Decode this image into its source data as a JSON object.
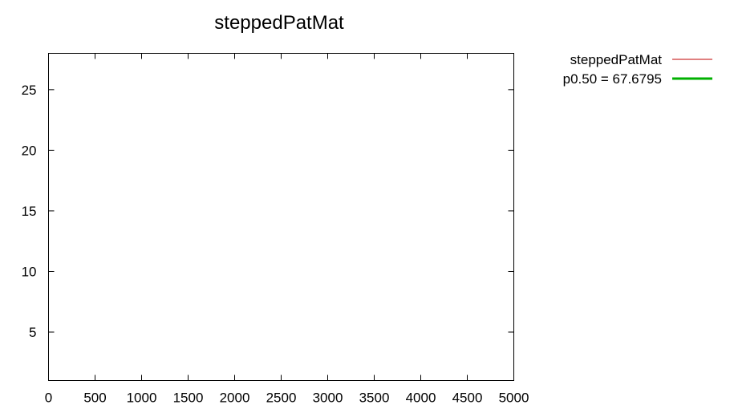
{
  "chart_data": {
    "type": "line",
    "title": "steppedPatMat",
    "xlabel": "",
    "ylabel": "",
    "xlim": [
      0,
      5000
    ],
    "ylim": [
      1,
      28
    ],
    "x_ticks": [
      0,
      500,
      1000,
      1500,
      2000,
      2500,
      3000,
      3500,
      4000,
      4500,
      5000
    ],
    "y_ticks": [
      5,
      10,
      15,
      20,
      25
    ],
    "x_tick_labels": [
      "0",
      "500",
      "1000",
      "1500",
      "2000",
      "2500",
      "3000",
      "3500",
      "4000",
      "4500",
      "5000"
    ],
    "y_tick_labels": [
      "5",
      "10",
      "15",
      "20",
      "25"
    ],
    "grid": false,
    "legend_position": "outside-right-top",
    "series": [
      {
        "name": "steppedPatMat",
        "color": "#c00000",
        "line_style": "thin",
        "x": [],
        "y": []
      },
      {
        "name": "p0.50 = 67.6795",
        "color": "#00b000",
        "line_style": "thick",
        "x": [],
        "y": []
      }
    ]
  }
}
